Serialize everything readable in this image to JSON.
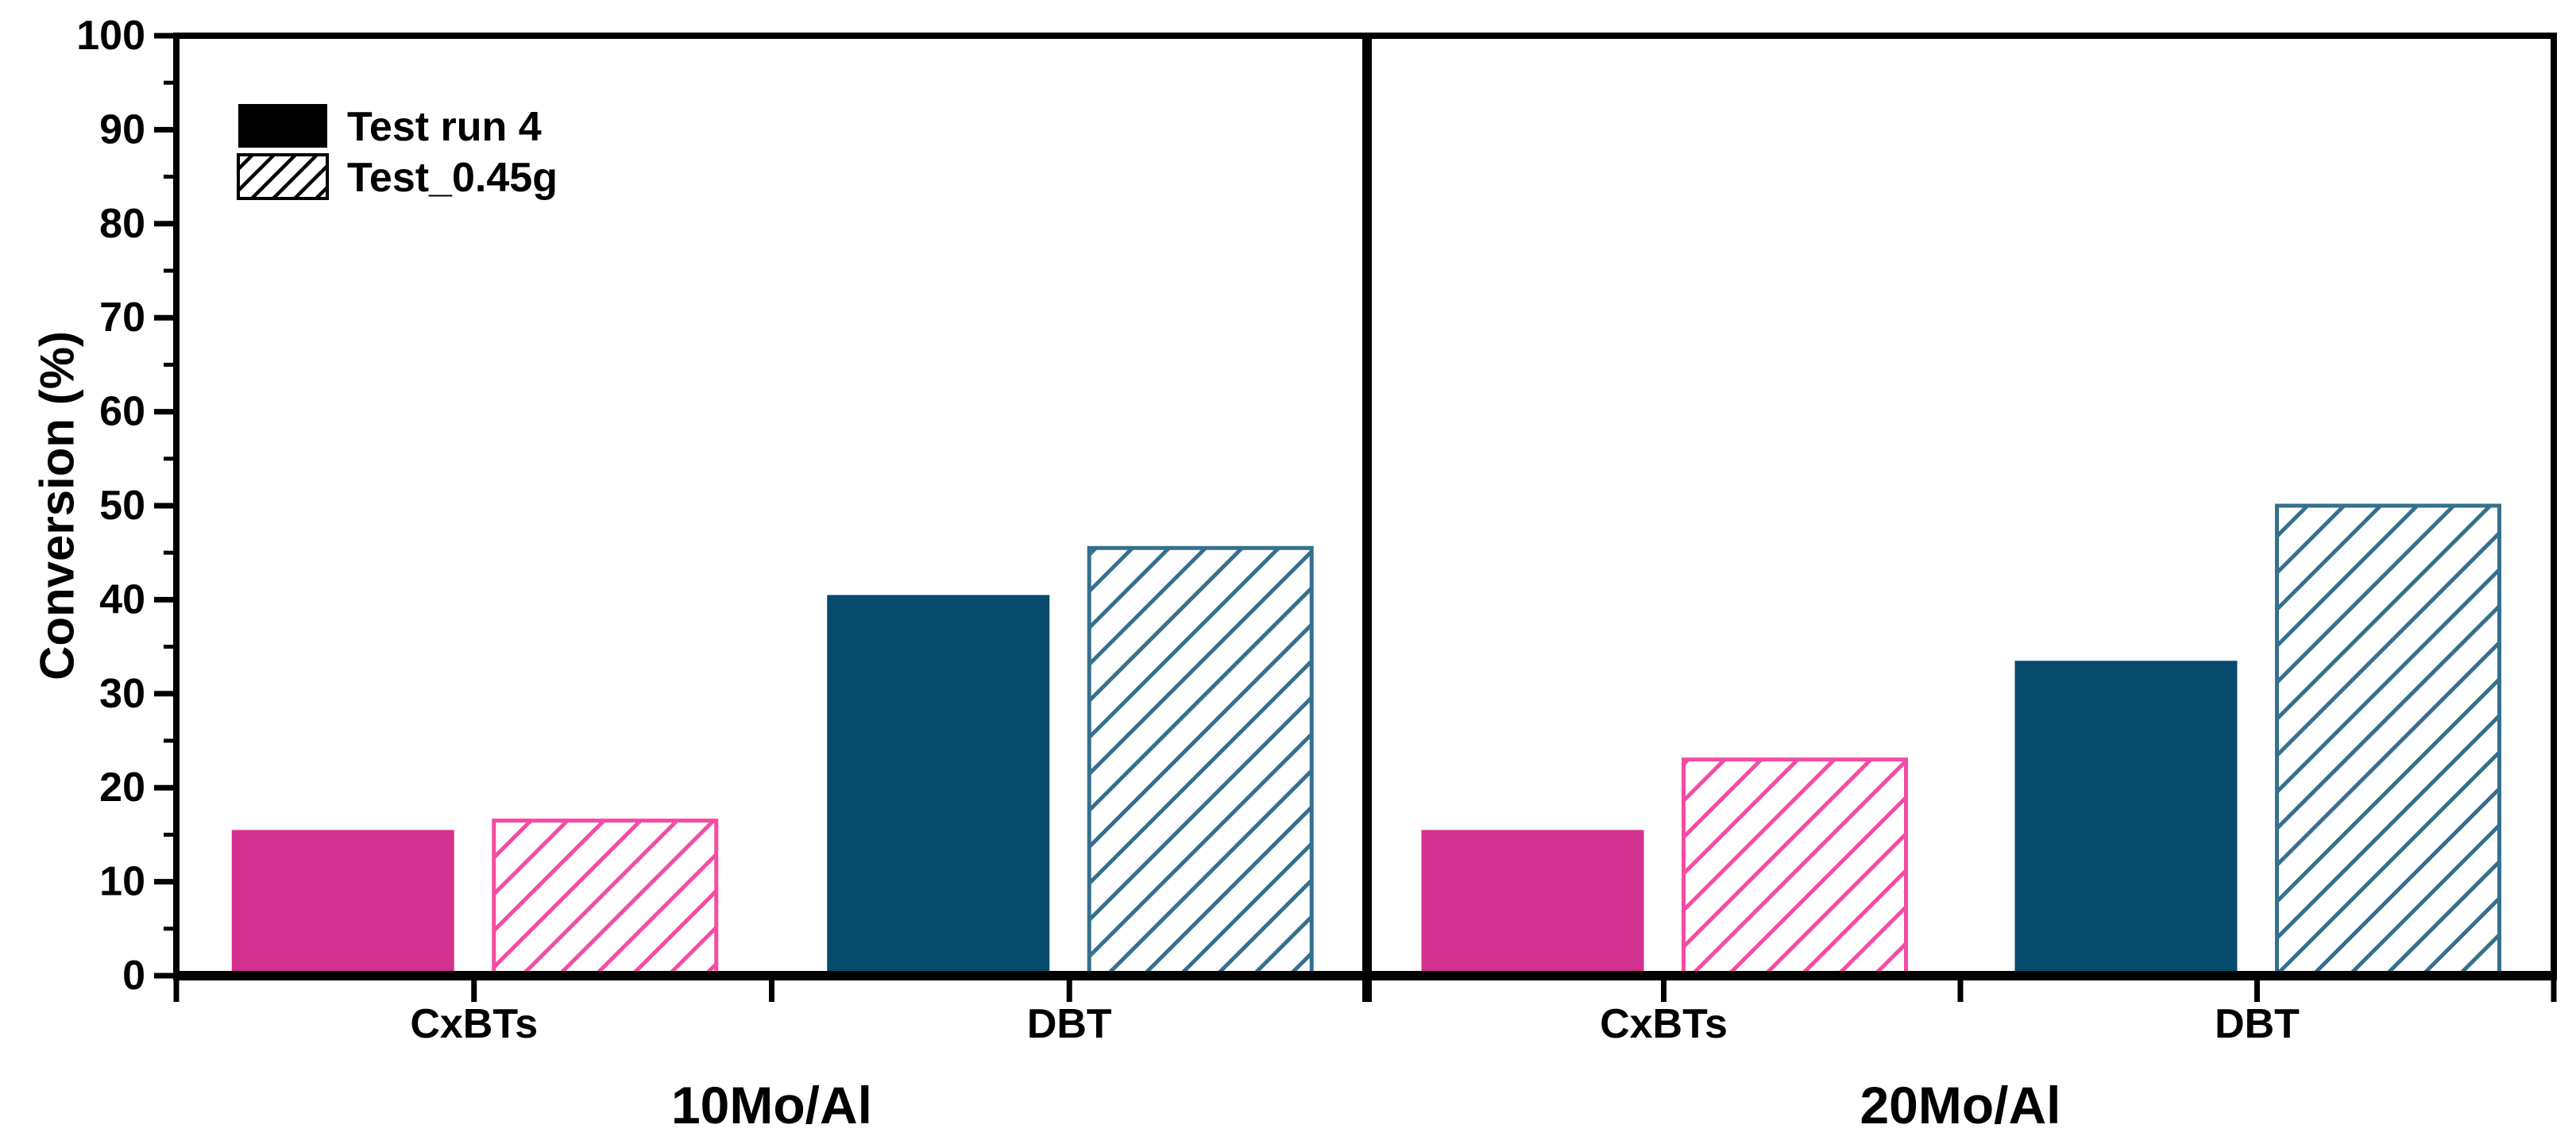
{
  "figure": {
    "background": "#FFFFFF"
  },
  "chart_data": {
    "type": "bar",
    "title": "",
    "xlabel": "",
    "ylabel": "Conversion (%)",
    "ylim": [
      0,
      100
    ],
    "ytick_major_step": 10,
    "ytick_minor_step": 5,
    "grid": false,
    "legend_position": "upper-left",
    "legend": [
      {
        "label": "Test run 4",
        "swatch": "solid-black"
      },
      {
        "label": "Test_0.45g",
        "swatch": "black-diagonal-hatch"
      }
    ],
    "panels": [
      {
        "title": "10Mo/Al",
        "categories": [
          "CxBTs",
          "DBT"
        ],
        "series": [
          {
            "name": "Test run 4",
            "style": "solid",
            "values": [
              15.5,
              40.5
            ]
          },
          {
            "name": "Test_0.45g",
            "style": "hatched",
            "values": [
              16.5,
              45.5
            ]
          }
        ]
      },
      {
        "title": "20Mo/Al",
        "categories": [
          "CxBTs",
          "DBT"
        ],
        "series": [
          {
            "name": "Test run 4",
            "style": "solid",
            "values": [
              15.5,
              33.5
            ]
          },
          {
            "name": "Test_0.45g",
            "style": "hatched",
            "values": [
              23,
              50
            ]
          }
        ]
      }
    ],
    "colors": {
      "cxbts_solid": "#D4308F",
      "cxbts_hatch": "#F54BA4",
      "dbt_solid": "#064A6C",
      "dbt_hatch": "#35708E",
      "axis": "#000000",
      "legend_solid": "#000000"
    }
  }
}
